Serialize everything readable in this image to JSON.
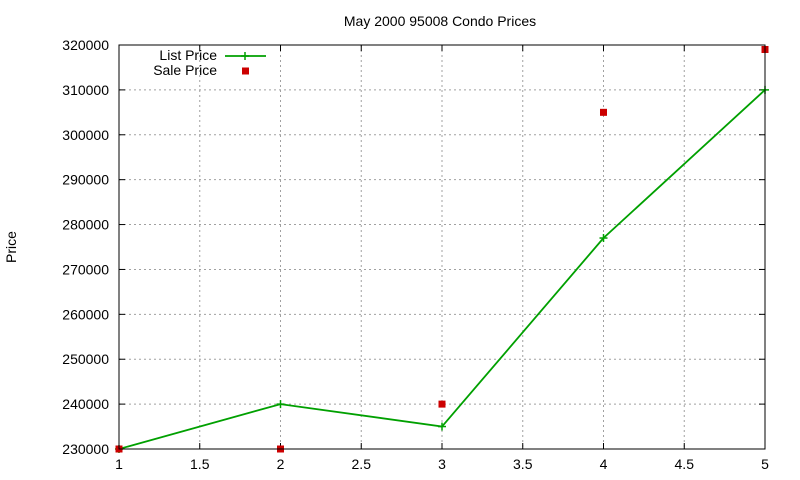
{
  "chart_data": {
    "type": "line",
    "title": "May 2000 95008 Condo Prices",
    "xlabel": "",
    "ylabel": "Price",
    "xlim": [
      1,
      5
    ],
    "ylim": [
      230000,
      320000
    ],
    "xticks": [
      "1",
      "1.5",
      "2",
      "2.5",
      "3",
      "3.5",
      "4",
      "4.5",
      "5"
    ],
    "yticks": [
      "230000",
      "240000",
      "250000",
      "260000",
      "270000",
      "280000",
      "290000",
      "300000",
      "310000",
      "320000"
    ],
    "grid": true,
    "legend_position": "top-left",
    "series": [
      {
        "name": "List Price",
        "style": "linespoints",
        "marker": "plus",
        "color": "#00a000",
        "x": [
          1,
          2,
          3,
          4,
          5
        ],
        "y": [
          230000,
          240000,
          235000,
          277000,
          310000
        ]
      },
      {
        "name": "Sale Price",
        "style": "points",
        "marker": "square",
        "color": "#cc0000",
        "x": [
          1,
          2,
          3,
          4,
          5
        ],
        "y": [
          230000,
          230000,
          240000,
          305000,
          319000
        ]
      }
    ]
  }
}
